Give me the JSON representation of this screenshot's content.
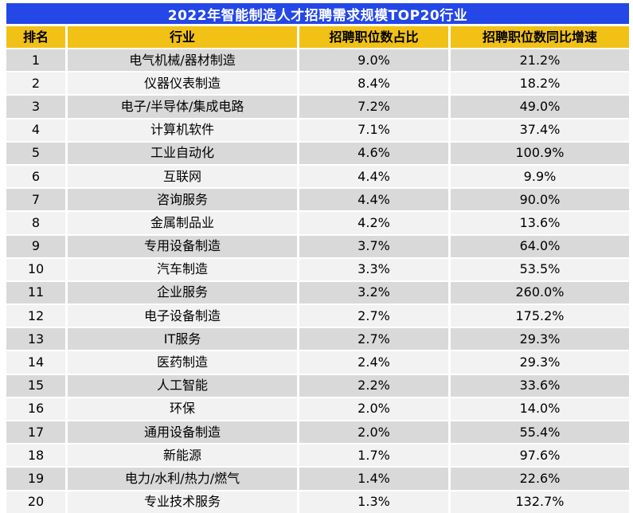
{
  "title": "2022年智能制造人才招聘需求规模TOP20行业",
  "colors": {
    "title_bg": "#2447e8",
    "title_text": "#ffffff",
    "header_bg": "#f1c116",
    "row_odd_bg": "#d9d9d9",
    "row_even_bg": "#f2f2f2",
    "text": "#000000"
  },
  "table": {
    "headers": [
      "排名",
      "行业",
      "招聘职位数占比",
      "招聘职位数同比增速"
    ],
    "rows": [
      {
        "rank": "1",
        "industry": "电气机械/器材制造",
        "share": "9.0%",
        "growth": "21.2%"
      },
      {
        "rank": "2",
        "industry": "仪器仪表制造",
        "share": "8.4%",
        "growth": "18.2%"
      },
      {
        "rank": "3",
        "industry": "电子/半导体/集成电路",
        "share": "7.2%",
        "growth": "49.0%"
      },
      {
        "rank": "4",
        "industry": "计算机软件",
        "share": "7.1%",
        "growth": "37.4%"
      },
      {
        "rank": "5",
        "industry": "工业自动化",
        "share": "4.6%",
        "growth": "100.9%"
      },
      {
        "rank": "6",
        "industry": "互联网",
        "share": "4.4%",
        "growth": "9.9%"
      },
      {
        "rank": "7",
        "industry": "咨询服务",
        "share": "4.4%",
        "growth": "90.0%"
      },
      {
        "rank": "8",
        "industry": "金属制品业",
        "share": "4.2%",
        "growth": "13.6%"
      },
      {
        "rank": "9",
        "industry": "专用设备制造",
        "share": "3.7%",
        "growth": "64.0%"
      },
      {
        "rank": "10",
        "industry": "汽车制造",
        "share": "3.3%",
        "growth": "53.5%"
      },
      {
        "rank": "11",
        "industry": "企业服务",
        "share": "3.2%",
        "growth": "260.0%"
      },
      {
        "rank": "12",
        "industry": "电子设备制造",
        "share": "2.7%",
        "growth": "175.2%"
      },
      {
        "rank": "13",
        "industry": "IT服务",
        "share": "2.7%",
        "growth": "29.3%"
      },
      {
        "rank": "14",
        "industry": "医药制造",
        "share": "2.4%",
        "growth": "29.3%"
      },
      {
        "rank": "15",
        "industry": "人工智能",
        "share": "2.2%",
        "growth": "33.6%"
      },
      {
        "rank": "16",
        "industry": "环保",
        "share": "2.0%",
        "growth": "14.0%"
      },
      {
        "rank": "17",
        "industry": "通用设备制造",
        "share": "2.0%",
        "growth": "55.4%"
      },
      {
        "rank": "18",
        "industry": "新能源",
        "share": "1.7%",
        "growth": "97.6%"
      },
      {
        "rank": "19",
        "industry": "电力/水利/热力/燃气",
        "share": "1.4%",
        "growth": "22.6%"
      },
      {
        "rank": "20",
        "industry": "专业技术服务",
        "share": "1.3%",
        "growth": "132.7%"
      }
    ]
  },
  "chart_data": {
    "type": "table",
    "title": "2022年智能制造人才招聘需求规模TOP20行业",
    "columns": [
      "排名",
      "行业",
      "招聘职位数占比",
      "招聘职位数同比增速"
    ],
    "rows": [
      [
        1,
        "电气机械/器材制造",
        9.0,
        21.2
      ],
      [
        2,
        "仪器仪表制造",
        8.4,
        18.2
      ],
      [
        3,
        "电子/半导体/集成电路",
        7.2,
        49.0
      ],
      [
        4,
        "计算机软件",
        7.1,
        37.4
      ],
      [
        5,
        "工业自动化",
        4.6,
        100.9
      ],
      [
        6,
        "互联网",
        4.4,
        9.9
      ],
      [
        7,
        "咨询服务",
        4.4,
        90.0
      ],
      [
        8,
        "金属制品业",
        4.2,
        13.6
      ],
      [
        9,
        "专用设备制造",
        3.7,
        64.0
      ],
      [
        10,
        "汽车制造",
        3.3,
        53.5
      ],
      [
        11,
        "企业服务",
        3.2,
        260.0
      ],
      [
        12,
        "电子设备制造",
        2.7,
        175.2
      ],
      [
        13,
        "IT服务",
        2.7,
        29.3
      ],
      [
        14,
        "医药制造",
        2.4,
        29.3
      ],
      [
        15,
        "人工智能",
        2.2,
        33.6
      ],
      [
        16,
        "环保",
        2.0,
        14.0
      ],
      [
        17,
        "通用设备制造",
        2.0,
        55.4
      ],
      [
        18,
        "新能源",
        1.7,
        97.6
      ],
      [
        19,
        "电力/水利/热力/燃气",
        1.4,
        22.6
      ],
      [
        20,
        "专业技术服务",
        1.3,
        132.7
      ]
    ],
    "value_units": "percent",
    "notes_layout": "blue title band, gold header row, zebra rows grey/light-grey, all cells center-aligned"
  }
}
